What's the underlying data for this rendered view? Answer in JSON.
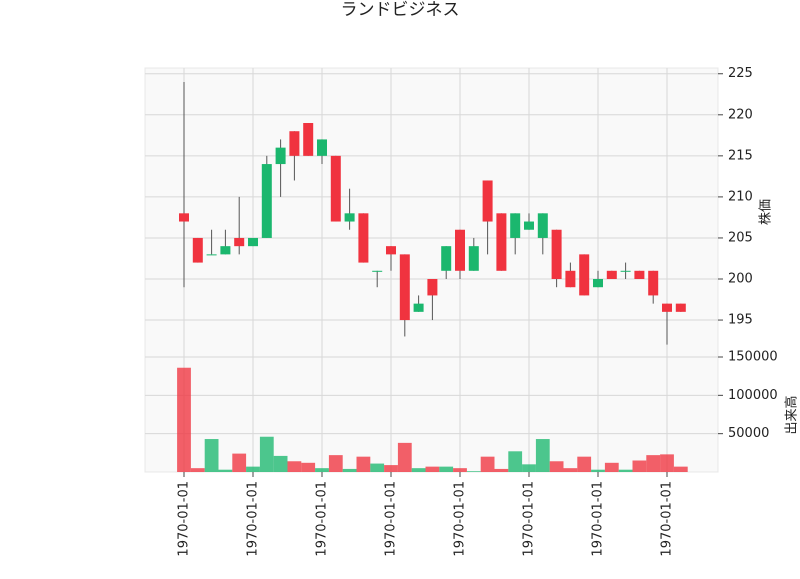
{
  "chart_data": {
    "type": "candlestick",
    "title": "ランドビジネス",
    "ylabel": "株価",
    "y2label": "出来高",
    "categories": [
      "1970-01-01",
      null,
      null,
      null,
      null,
      "1970-01-01",
      null,
      null,
      null,
      null,
      "1970-01-01",
      null,
      null,
      null,
      null,
      "1970-01-01",
      null,
      null,
      null,
      null,
      "1970-01-01",
      null,
      null,
      null,
      null,
      "1970-01-01",
      null,
      null,
      null,
      null,
      "1970-01-01",
      null,
      null,
      null,
      null,
      "1970-01-01",
      null
    ],
    "open": [
      208,
      205,
      203,
      203,
      205,
      204,
      205,
      214,
      218,
      219,
      215,
      215,
      207,
      208,
      201,
      204,
      203,
      196,
      200,
      201,
      206,
      201,
      212,
      208,
      205,
      206,
      205,
      206,
      201,
      203,
      199,
      201,
      201,
      201,
      201,
      197,
      197
    ],
    "high": [
      224,
      205,
      206,
      206,
      210,
      205,
      215,
      217,
      218,
      219,
      217,
      215,
      211,
      208,
      201,
      204,
      203,
      198,
      200,
      204,
      206,
      205,
      212,
      208,
      208,
      208,
      208,
      206,
      202,
      203,
      201,
      201,
      202,
      201,
      201,
      197,
      197
    ],
    "low": [
      199,
      202,
      203,
      203,
      203,
      204,
      205,
      210,
      212,
      215,
      214,
      207,
      206,
      202,
      199,
      201,
      193,
      196,
      195,
      200,
      200,
      201,
      203,
      201,
      203,
      206,
      203,
      199,
      199,
      198,
      199,
      200,
      200,
      200,
      197,
      192,
      196
    ],
    "close": [
      207,
      202,
      203,
      204,
      204,
      205,
      214,
      216,
      215,
      215,
      217,
      207,
      208,
      202,
      201,
      203,
      195,
      197,
      198,
      204,
      201,
      204,
      207,
      201,
      208,
      207,
      208,
      200,
      199,
      198,
      200,
      200,
      201,
      200,
      198,
      196,
      196
    ],
    "volume": [
      136000,
      5000,
      43000,
      3000,
      24000,
      7000,
      46000,
      21000,
      14000,
      12000,
      5000,
      22000,
      4000,
      20000,
      11000,
      9000,
      38000,
      5000,
      7000,
      7000,
      5000,
      1000,
      20000,
      4000,
      27000,
      10000,
      43000,
      14000,
      5000,
      20000,
      3000,
      12000,
      3000,
      15000,
      22000,
      23000,
      7000
    ],
    "up_color": "#1bb76e",
    "down_color": "#f0333f",
    "ylim": [
      190.5,
      225.7
    ],
    "yticks": [
      195,
      200,
      205,
      210,
      215,
      220,
      225
    ],
    "y2lim": [
      0,
      150000
    ],
    "y2ticks": [
      50000,
      100000,
      150000
    ],
    "grid": true
  }
}
